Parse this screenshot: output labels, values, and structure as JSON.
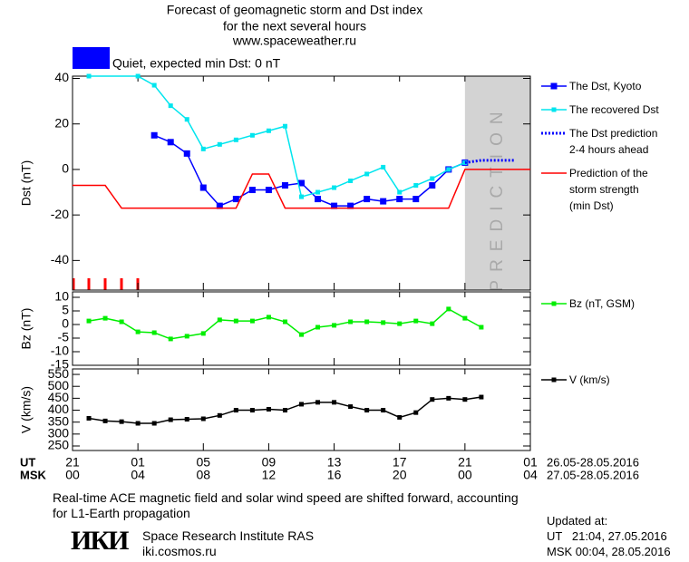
{
  "chart_data": [
    {
      "type": "line",
      "title": "Forecast of geomagnetic storm and Dst index",
      "subtitle": "for the next several hours",
      "source": "www.spaceweather.ru",
      "status": {
        "label": "Quiet, expected min Dst: 0 nT",
        "color": "#0000ff"
      },
      "y_label": "Dst (nT)",
      "xlim": [
        0,
        28
      ],
      "ylim": [
        -53,
        41
      ],
      "yticks": [
        -40,
        -20,
        0,
        20,
        40
      ],
      "prediction": {
        "label": "PREDICTION",
        "xlim": [
          24,
          28
        ],
        "color": "#d3d3d3"
      },
      "series": [
        {
          "name": "The Dst, Kyoto",
          "color": "#0000ff",
          "marker": "square",
          "x": [
            5,
            6,
            7,
            8,
            9,
            10,
            11,
            12,
            13,
            14,
            15,
            16,
            17,
            18,
            19,
            20,
            21,
            22,
            23,
            24
          ],
          "values": [
            15,
            12,
            7,
            -8,
            -16,
            -13,
            -9,
            -9,
            -7,
            -6,
            -13,
            -16,
            -16,
            -13,
            -14,
            -13,
            -13,
            -7,
            0,
            3
          ]
        },
        {
          "name": "The recovered Dst",
          "color": "#00e5ee",
          "marker": "small-square",
          "x": [
            1,
            4,
            5,
            6,
            7,
            8,
            9,
            10,
            11,
            12,
            13,
            14,
            15,
            16,
            17,
            18,
            19,
            20,
            21,
            22,
            23,
            24
          ],
          "values": [
            41,
            41,
            37,
            28,
            22,
            9,
            11,
            13,
            15,
            17,
            19,
            -12,
            -10,
            -8,
            -5,
            -2,
            1,
            -10,
            -7,
            -4,
            0,
            3
          ]
        },
        {
          "name": "The Dst prediction 2-4 hours ahead",
          "color": "#0000ff",
          "dash": "dotted",
          "x": [
            24,
            25,
            26,
            27
          ],
          "values": [
            3,
            4,
            4,
            4
          ]
        },
        {
          "name": "Prediction of the storm strength (min Dst)",
          "color": "#ff0000",
          "x": [
            0,
            2,
            3,
            10,
            11,
            12,
            13,
            23,
            24,
            28
          ],
          "values": [
            -7,
            -7,
            -17,
            -17,
            -2,
            -2,
            -17,
            -17,
            0,
            0
          ]
        }
      ]
    },
    {
      "type": "line",
      "y_label": "Bz (nT)",
      "xlim": [
        0,
        28
      ],
      "ylim": [
        -15,
        12
      ],
      "yticks": [
        -15,
        -10,
        -5,
        0,
        5,
        10
      ],
      "series": [
        {
          "name": "Bz (nT, GSM)",
          "color": "#00ee00",
          "marker": "small-square",
          "x": [
            1,
            2,
            3,
            4,
            5,
            6,
            7,
            8,
            9,
            10,
            11,
            12,
            13,
            14,
            15,
            16,
            17,
            18,
            19,
            20,
            21,
            22,
            23,
            24,
            25
          ],
          "values": [
            1.3,
            2.3,
            1,
            -2.7,
            -3,
            -5.3,
            -4.3,
            -3.3,
            1.7,
            1.3,
            1.3,
            2.7,
            1,
            -3.7,
            -1,
            -0.3,
            1,
            1,
            0.7,
            0.3,
            1.3,
            0.3,
            5.7,
            2.3,
            -1
          ]
        }
      ]
    },
    {
      "type": "line",
      "y_label": "V (km/s)",
      "xlim": [
        0,
        28
      ],
      "ylim": [
        231,
        573
      ],
      "yticks": [
        250,
        300,
        350,
        400,
        450,
        500,
        550
      ],
      "x_label": "UT",
      "x2_label": "MSK",
      "xticks": [
        {
          "value": 0,
          "label": "21"
        },
        {
          "value": 4,
          "label": "01"
        },
        {
          "value": 8,
          "label": "05"
        },
        {
          "value": 12,
          "label": "09"
        },
        {
          "value": 16,
          "label": "13"
        },
        {
          "value": 20,
          "label": "17"
        },
        {
          "value": 24,
          "label": "21"
        },
        {
          "value": 28,
          "label": "01"
        }
      ],
      "x2_labels": [
        "00",
        "04",
        "08",
        "12",
        "16",
        "20",
        "00",
        "04"
      ],
      "date_range": "26.05-28.05.2016",
      "date_range2": "27.05-28.05.2016",
      "series": [
        {
          "name": "V (km/s)",
          "color": "#000000",
          "marker": "small-square",
          "x": [
            1,
            2,
            3,
            4,
            5,
            6,
            7,
            8,
            9,
            10,
            11,
            12,
            13,
            14,
            15,
            16,
            17,
            18,
            19,
            20,
            21,
            22,
            23,
            24,
            25
          ],
          "values": [
            366,
            355,
            352,
            345,
            345,
            360,
            362,
            364,
            378,
            400,
            400,
            404,
            400,
            425,
            433,
            433,
            415,
            400,
            400,
            370,
            390,
            445,
            450,
            445,
            455
          ]
        }
      ]
    }
  ],
  "note": "Real-time ACE magnetic field and solar wind speed are shifted forward, accounting for L1-Earth propagation",
  "institute": {
    "logo": "ИКИ",
    "name": "Space Research Institute RAS",
    "url": "iki.cosmos.ru"
  },
  "updated": {
    "label": "Updated at:",
    "ut": "UT   21:04, 27.05.2016",
    "msk": "MSK 00:04, 28.05.2016"
  }
}
